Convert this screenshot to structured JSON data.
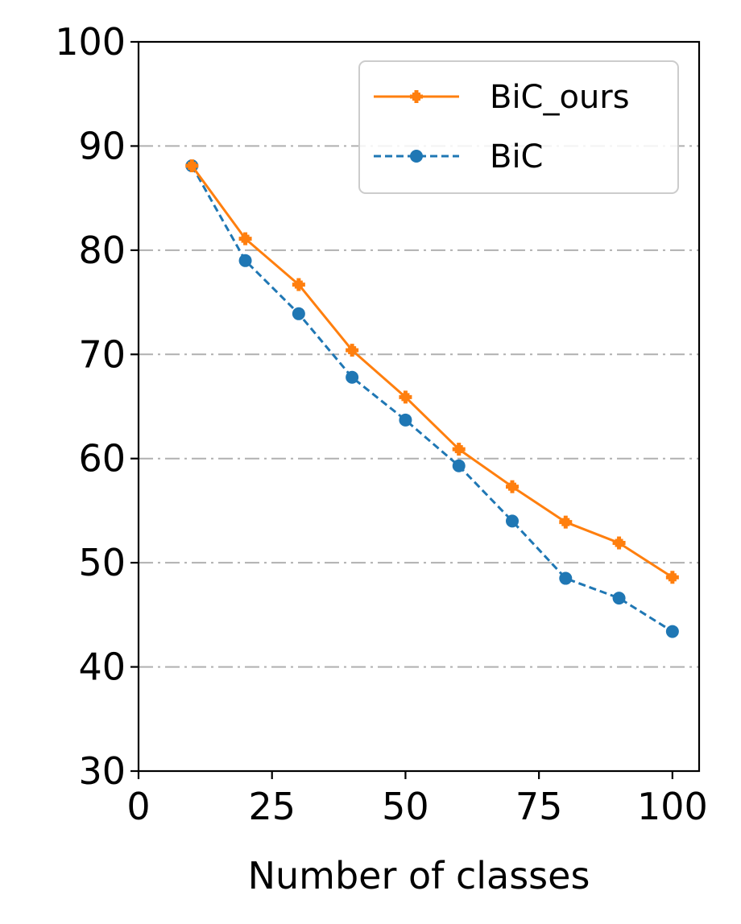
{
  "chart_data": {
    "type": "line",
    "title": "",
    "xlabel": "Number of classes",
    "ylabel": "",
    "xlim": [
      0,
      105
    ],
    "ylim": [
      30,
      100
    ],
    "xticks": [
      0,
      25,
      50,
      75,
      100
    ],
    "yticks": [
      30,
      40,
      50,
      60,
      70,
      80,
      90,
      100
    ],
    "xtick_labels": [
      "0",
      "25",
      "50",
      "75",
      "100"
    ],
    "ytick_labels": [
      "30",
      "40",
      "50",
      "60",
      "70",
      "80",
      "90",
      "100"
    ],
    "grid": "horizontal, dash-dot",
    "legend_position": "top-right",
    "x": [
      10,
      20,
      30,
      40,
      50,
      60,
      70,
      80,
      90,
      100
    ],
    "series": [
      {
        "name": "BiC_ours",
        "color": "#ff7f0e",
        "line_style": "solid",
        "marker": "plus",
        "values": [
          88.1,
          81.1,
          76.7,
          70.4,
          65.9,
          60.9,
          57.3,
          53.9,
          51.9,
          48.6
        ]
      },
      {
        "name": "BiC",
        "color": "#1f77b4",
        "line_style": "dashed",
        "marker": "circle",
        "values": [
          88.1,
          79.0,
          73.9,
          67.8,
          63.7,
          59.3,
          54.0,
          48.5,
          46.6,
          43.4
        ]
      }
    ]
  }
}
